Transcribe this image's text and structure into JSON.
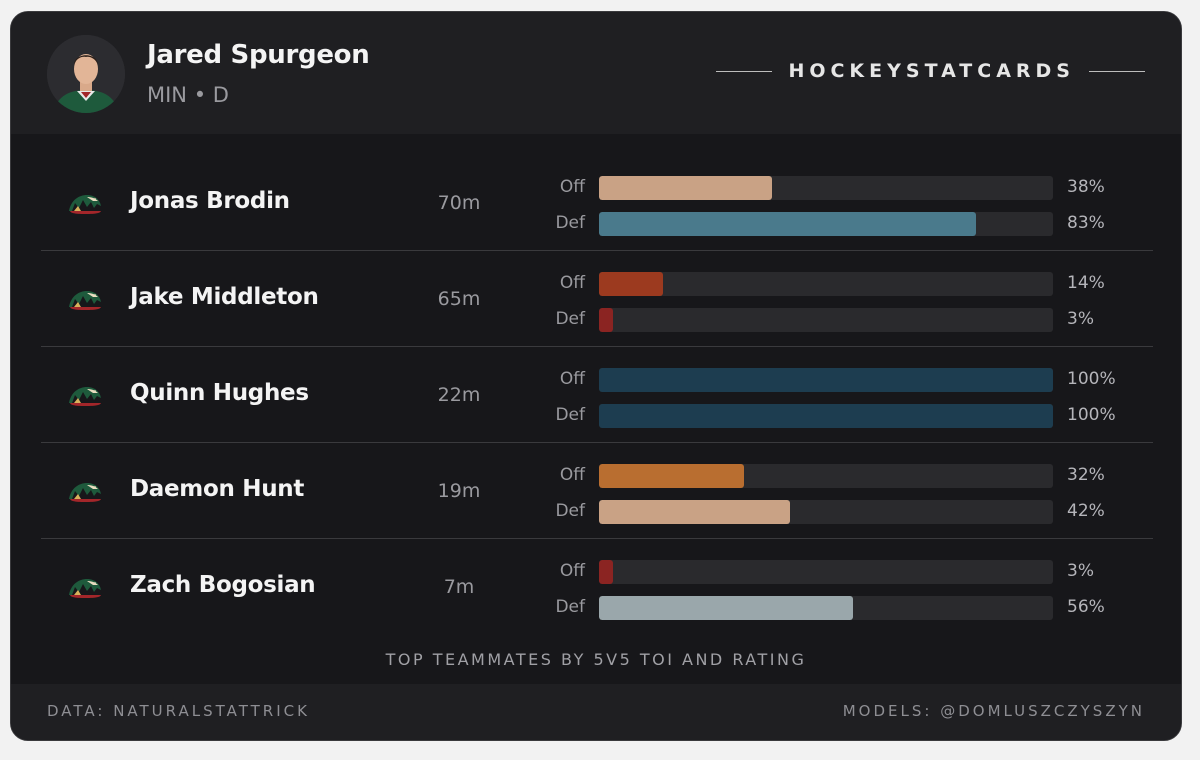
{
  "player": {
    "name": "Jared Spurgeon",
    "meta": "MIN • D"
  },
  "brand": "HOCKEYSTATCARDS",
  "labels": {
    "off": "Off",
    "def": "Def"
  },
  "teammates": [
    {
      "name": "Jonas Brodin",
      "toi": "70m",
      "off": 38,
      "def": 83,
      "off_text": "38%",
      "def_text": "83%",
      "off_color": "#c9a285",
      "def_color": "#4a7a8c"
    },
    {
      "name": "Jake Middleton",
      "toi": "65m",
      "off": 14,
      "def": 3,
      "off_text": "14%",
      "def_text": "3%",
      "off_color": "#9c3a1f",
      "def_color": "#8b2422"
    },
    {
      "name": "Quinn Hughes",
      "toi": "22m",
      "off": 100,
      "def": 100,
      "off_text": "100%",
      "def_text": "100%",
      "off_color": "#1d3d50",
      "def_color": "#1d3d50"
    },
    {
      "name": "Daemon Hunt",
      "toi": "19m",
      "off": 32,
      "def": 42,
      "off_text": "32%",
      "def_text": "42%",
      "off_color": "#b96e30",
      "def_color": "#c9a285"
    },
    {
      "name": "Zach Bogosian",
      "toi": "7m",
      "off": 3,
      "def": 56,
      "off_text": "3%",
      "def_text": "56%",
      "off_color": "#8b2422",
      "def_color": "#9aa7ab"
    }
  ],
  "caption": "TOP TEAMMATES BY 5V5 TOI AND RATING",
  "footer": {
    "left": "DATA: NATURALSTATTRICK",
    "right": "MODELS: @DOMLUSZCZYSZYN"
  },
  "icons": {
    "team_logo": "minnesota-wild-logo-icon",
    "avatar": "player-headshot"
  }
}
